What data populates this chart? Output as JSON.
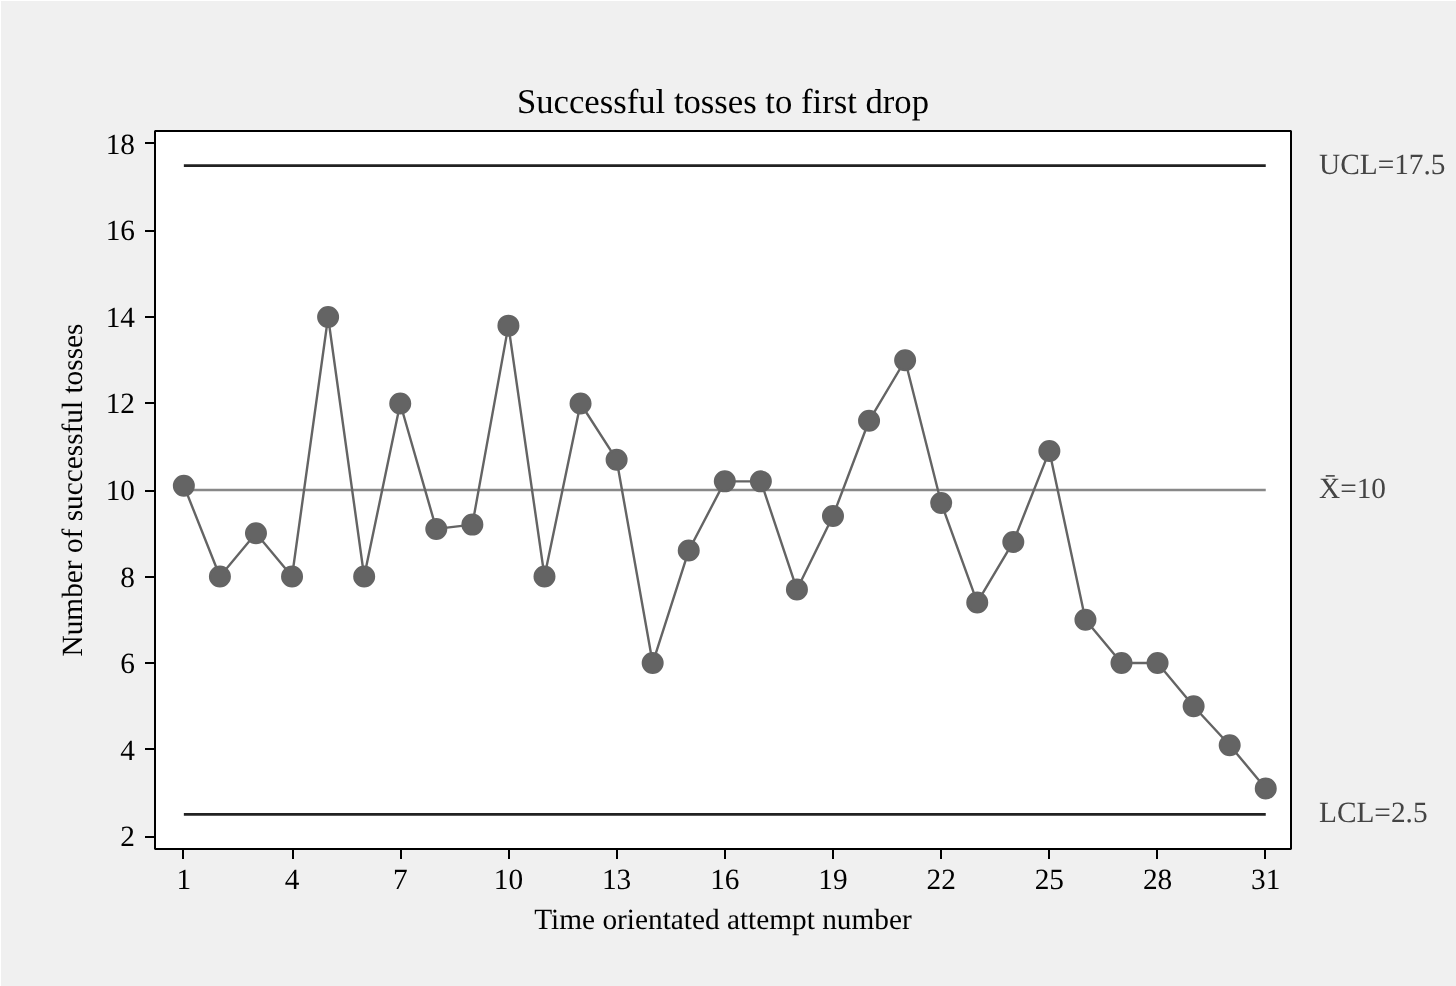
{
  "chart_data": {
    "type": "line",
    "title": "Successful tosses to first drop",
    "xlabel": "Time orientated attempt number",
    "ylabel": "Number of successful tosses",
    "x": [
      1,
      2,
      3,
      4,
      5,
      6,
      7,
      8,
      9,
      10,
      11,
      12,
      13,
      14,
      15,
      16,
      17,
      18,
      19,
      20,
      21,
      22,
      23,
      24,
      25,
      26,
      27,
      28,
      29,
      30,
      31
    ],
    "series": [
      {
        "color": "#646464",
        "values": [
          10.1,
          8.0,
          9.0,
          8.0,
          14.0,
          8.0,
          12.0,
          9.1,
          9.2,
          13.8,
          8.0,
          12.0,
          10.7,
          6.0,
          8.6,
          10.2,
          10.2,
          7.7,
          9.4,
          11.6,
          13.0,
          9.7,
          7.4,
          8.8,
          10.9,
          7.0,
          6.0,
          6.0,
          5.0,
          4.1,
          3.1
        ]
      }
    ],
    "marker": "circle",
    "line_style": "solid",
    "grid": false,
    "xlim": [
      0.2,
      31.7
    ],
    "ylim": [
      1.7,
      18.3
    ],
    "xticks": [
      1,
      4,
      7,
      10,
      13,
      16,
      19,
      22,
      25,
      28,
      31
    ],
    "yticks": [
      2,
      4,
      6,
      8,
      10,
      12,
      14,
      16,
      18
    ],
    "ref_lines": [
      {
        "axis": "y",
        "value": 17.5,
        "label": "UCL=17.5",
        "color": "#222222"
      },
      {
        "axis": "y",
        "value": 10,
        "label": "X̄=10",
        "color": "#888888"
      },
      {
        "axis": "y",
        "value": 2.5,
        "label": "LCL=2.5",
        "color": "#222222"
      }
    ]
  }
}
